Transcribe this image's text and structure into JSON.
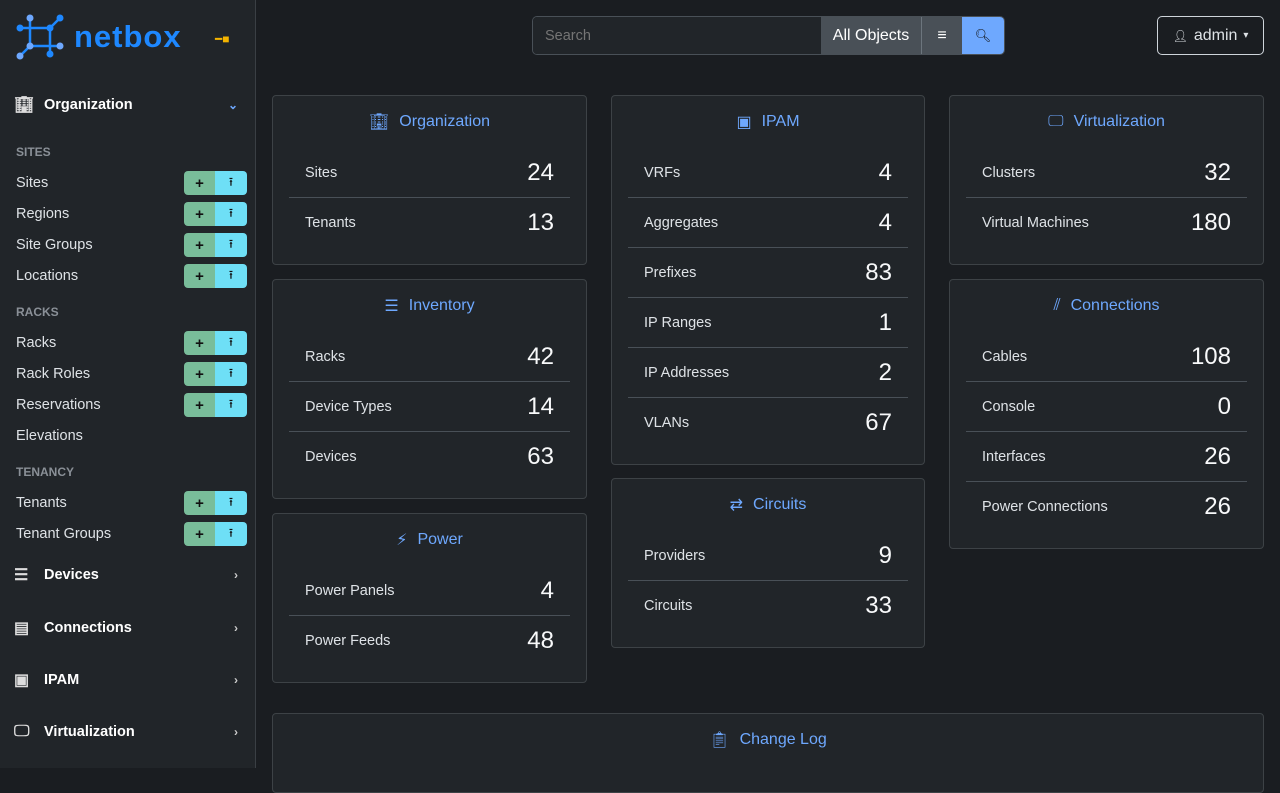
{
  "brand": {
    "name": "netbox"
  },
  "sidebar": {
    "organization": "Organization",
    "groups": [
      {
        "heading": "SITES",
        "items": [
          {
            "label": "Sites",
            "buttons": true
          },
          {
            "label": "Regions",
            "buttons": true
          },
          {
            "label": "Site Groups",
            "buttons": true
          },
          {
            "label": "Locations",
            "buttons": true
          }
        ]
      },
      {
        "heading": "RACKS",
        "items": [
          {
            "label": "Racks",
            "buttons": true
          },
          {
            "label": "Rack Roles",
            "buttons": true
          },
          {
            "label": "Reservations",
            "buttons": true
          },
          {
            "label": "Elevations",
            "buttons": false
          }
        ]
      },
      {
        "heading": "TENANCY",
        "items": [
          {
            "label": "Tenants",
            "buttons": true
          },
          {
            "label": "Tenant Groups",
            "buttons": true
          }
        ]
      }
    ],
    "sections": [
      {
        "label": "Devices",
        "icon": "server-icon"
      },
      {
        "label": "Connections",
        "icon": "ethernet-icon"
      },
      {
        "label": "IPAM",
        "icon": "ipam-icon"
      },
      {
        "label": "Virtualization",
        "icon": "monitor-icon"
      }
    ]
  },
  "search": {
    "placeholder": "Search",
    "scope": "All Objects"
  },
  "user": {
    "name": "admin"
  },
  "cards": [
    {
      "title": "Organization",
      "icon": "building-icon",
      "rows": [
        [
          "Sites",
          "24"
        ],
        [
          "Tenants",
          "13"
        ]
      ]
    },
    {
      "title": "Inventory",
      "icon": "server-icon",
      "rows": [
        [
          "Racks",
          "42"
        ],
        [
          "Device Types",
          "14"
        ],
        [
          "Devices",
          "63"
        ]
      ]
    },
    {
      "title": "Power",
      "icon": "lightning-icon",
      "rows": [
        [
          "Power Panels",
          "4"
        ],
        [
          "Power Feeds",
          "48"
        ]
      ]
    },
    {
      "title": "IPAM",
      "icon": "ipam-icon",
      "rows": [
        [
          "VRFs",
          "4"
        ],
        [
          "Aggregates",
          "4"
        ],
        [
          "Prefixes",
          "83"
        ],
        [
          "IP Ranges",
          "1"
        ],
        [
          "IP Addresses",
          "2"
        ],
        [
          "VLANs",
          "67"
        ]
      ]
    },
    {
      "title": "Circuits",
      "icon": "transit-icon",
      "rows": [
        [
          "Providers",
          "9"
        ],
        [
          "Circuits",
          "33"
        ]
      ]
    },
    {
      "title": "Virtualization",
      "icon": "monitor-icon",
      "rows": [
        [
          "Clusters",
          "32"
        ],
        [
          "Virtual Machines",
          "180"
        ]
      ]
    },
    {
      "title": "Connections",
      "icon": "cable-icon",
      "rows": [
        [
          "Cables",
          "108"
        ],
        [
          "Console",
          "0"
        ],
        [
          "Interfaces",
          "26"
        ],
        [
          "Power Connections",
          "26"
        ]
      ]
    },
    {
      "title": "Change Log",
      "icon": "clipboard-clock-icon",
      "rows": []
    }
  ],
  "colors": {
    "accent": "#6ea8fe",
    "brand": "#1e88ff",
    "add": "#79bd9a",
    "import": "#6edff6"
  }
}
